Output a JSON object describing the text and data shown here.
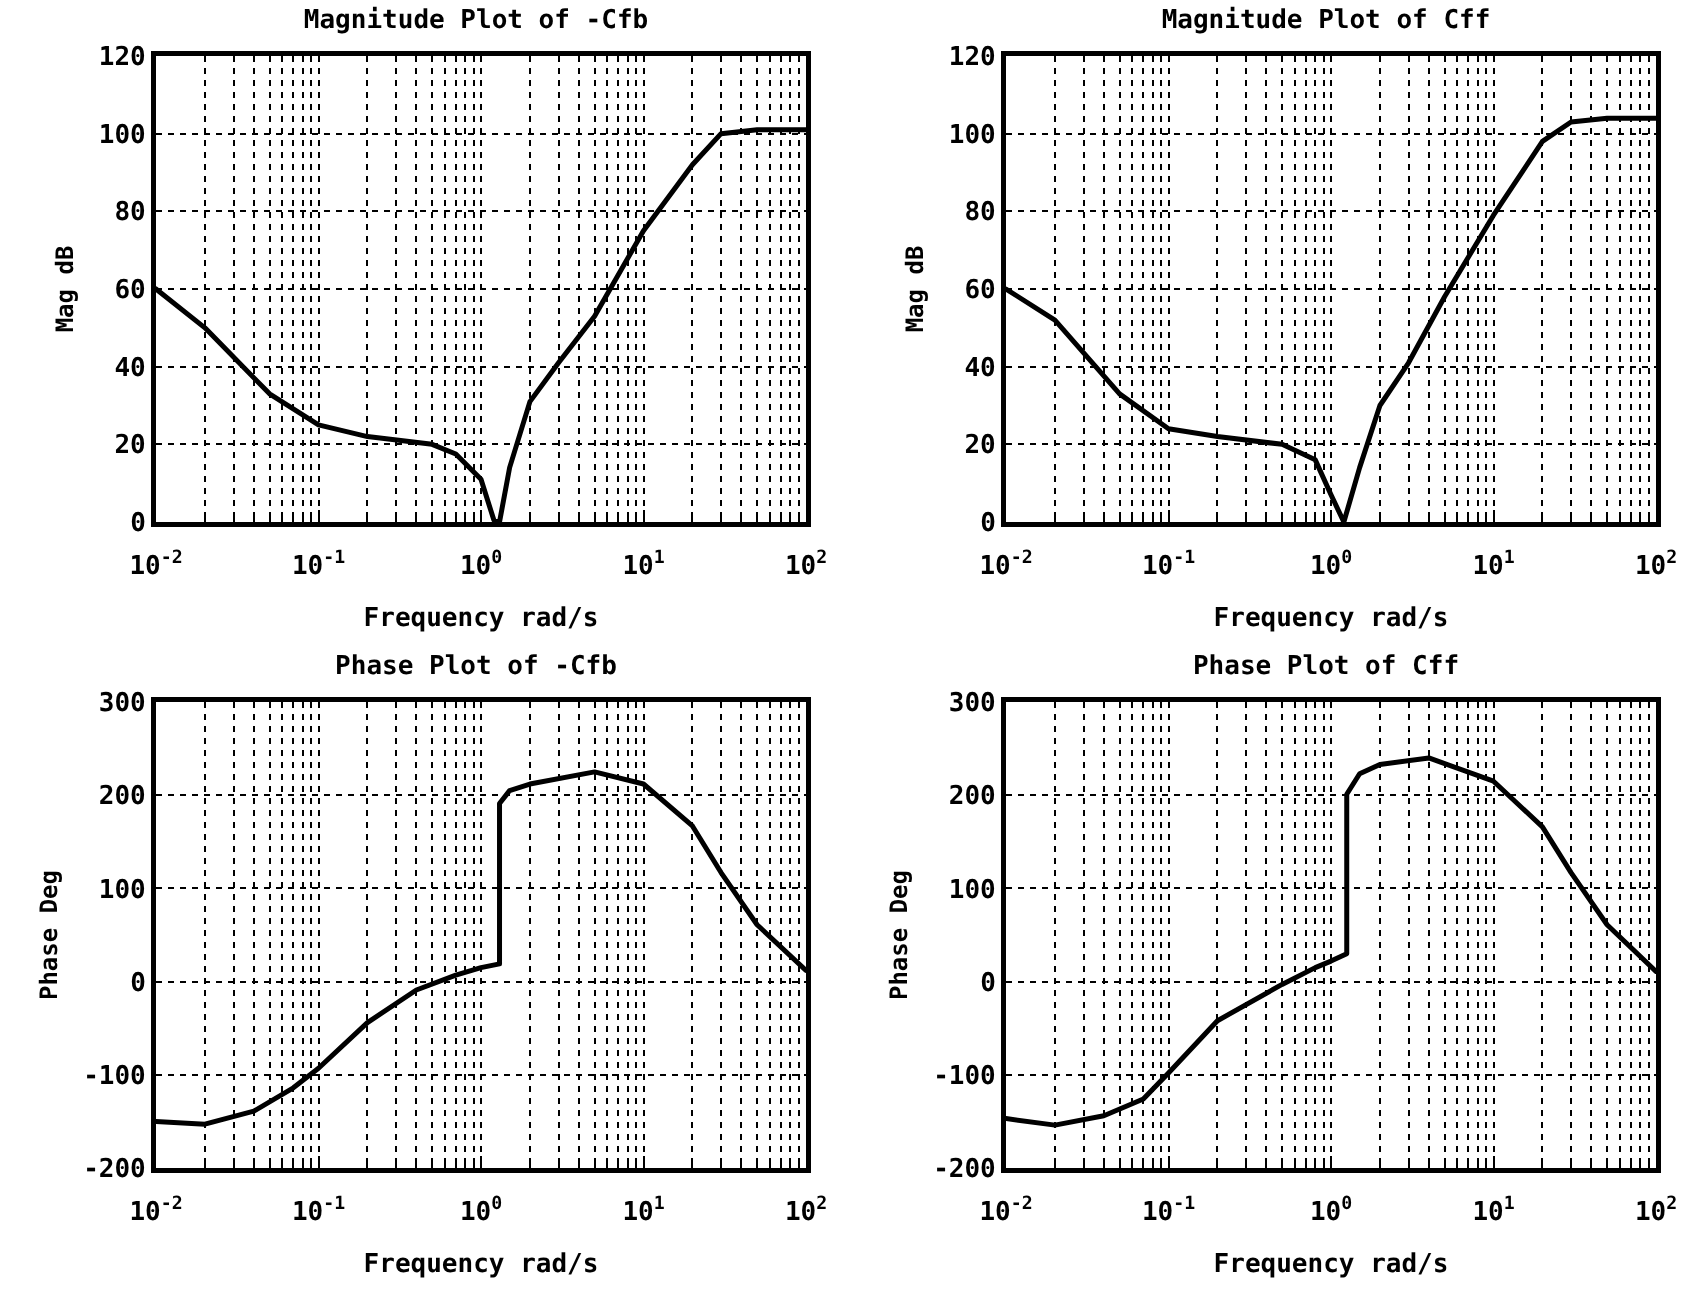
{
  "chart_data": [
    {
      "type": "line",
      "title": "Magnitude Plot of -Cfb",
      "xlabel": "Frequency rad/s",
      "ylabel": "Mag dB",
      "log": "x",
      "grid": true,
      "xlim": [
        0.01,
        100
      ],
      "xticks": [
        {
          "value": 0.01,
          "label": "10$^{-2}$"
        },
        {
          "value": 0.1,
          "label": "10$^{-1}$"
        },
        {
          "value": 1,
          "label": "10$^{0}$"
        },
        {
          "value": 10,
          "label": "10$^{1}$"
        },
        {
          "value": 100,
          "label": "10$^{2}$"
        }
      ],
      "ylim": [
        0,
        120
      ],
      "yticks": [
        0,
        20,
        40,
        60,
        80,
        100,
        120
      ],
      "series": [
        {
          "color": "#000000",
          "x": [
            0.01,
            0.02,
            0.05,
            0.1,
            0.2,
            0.5,
            0.7,
            1,
            1.2,
            1.3,
            1.5,
            2,
            3,
            5,
            10,
            20,
            30,
            50,
            100
          ],
          "values": [
            60,
            50,
            33,
            25,
            22,
            20,
            17.5,
            11,
            0.5,
            0,
            14,
            31,
            41,
            53,
            75,
            92,
            100,
            101,
            101
          ]
        }
      ]
    },
    {
      "type": "line",
      "title": "Magnitude Plot of Cff",
      "xlabel": "Frequency rad/s",
      "ylabel": "Mag dB",
      "log": "x",
      "grid": true,
      "xlim": [
        0.01,
        100
      ],
      "xticks": [
        {
          "value": 0.01,
          "label": "10$^{-2}$"
        },
        {
          "value": 0.1,
          "label": "10$^{-1}$"
        },
        {
          "value": 1,
          "label": "10$^{0}$"
        },
        {
          "value": 10,
          "label": "10$^{1}$"
        },
        {
          "value": 100,
          "label": "10$^{2}$"
        }
      ],
      "ylim": [
        0,
        120
      ],
      "yticks": [
        0,
        20,
        40,
        60,
        80,
        100,
        120
      ],
      "series": [
        {
          "color": "#000000",
          "x": [
            0.01,
            0.02,
            0.05,
            0.1,
            0.2,
            0.5,
            0.8,
            1,
            1.2,
            1.5,
            2,
            3,
            5,
            10,
            20,
            30,
            50,
            100
          ],
          "values": [
            60,
            52,
            33,
            24,
            22,
            20,
            16,
            7,
            0,
            14,
            30,
            41,
            58,
            79,
            98,
            103,
            104,
            104
          ]
        }
      ]
    },
    {
      "type": "line",
      "title": "Phase Plot of -Cfb",
      "xlabel": "Frequency rad/s",
      "ylabel": "Phase Deg",
      "log": "x",
      "grid": true,
      "xlim": [
        0.01,
        100
      ],
      "xticks": [
        {
          "value": 0.01,
          "label": "10$^{-2}$"
        },
        {
          "value": 0.1,
          "label": "10$^{-1}$"
        },
        {
          "value": 1,
          "label": "10$^{0}$"
        },
        {
          "value": 10,
          "label": "10$^{1}$"
        },
        {
          "value": 100,
          "label": "10$^{2}$"
        }
      ],
      "ylim": [
        -200,
        300
      ],
      "yticks": [
        -200,
        -100,
        0,
        100,
        200,
        300
      ],
      "series": [
        {
          "color": "#000000",
          "x": [
            0.01,
            0.02,
            0.04,
            0.07,
            0.1,
            0.2,
            0.4,
            0.7,
            1,
            1.3,
            1.3,
            1.5,
            2,
            5,
            10,
            20,
            30,
            50,
            100
          ],
          "values": [
            -150,
            -153,
            -139,
            -114,
            -93,
            -44,
            -9,
            7,
            15,
            19,
            191,
            205,
            212,
            225,
            212,
            167,
            117,
            61,
            12
          ]
        }
      ]
    },
    {
      "type": "line",
      "title": "Phase Plot of Cff",
      "xlabel": "Frequency rad/s",
      "ylabel": "Phase Deg",
      "log": "x",
      "grid": true,
      "xlim": [
        0.01,
        100
      ],
      "xticks": [
        {
          "value": 0.01,
          "label": "10$^{-2}$"
        },
        {
          "value": 0.1,
          "label": "10$^{-1}$"
        },
        {
          "value": 1,
          "label": "10$^{0}$"
        },
        {
          "value": 10,
          "label": "10$^{1}$"
        },
        {
          "value": 100,
          "label": "10$^{2}$"
        }
      ],
      "ylim": [
        -200,
        300
      ],
      "yticks": [
        -200,
        -100,
        0,
        100,
        200,
        300
      ],
      "series": [
        {
          "color": "#000000",
          "x": [
            0.01,
            0.02,
            0.04,
            0.07,
            0.1,
            0.2,
            0.5,
            0.8,
            1,
            1.25,
            1.25,
            1.5,
            2,
            4,
            10,
            20,
            30,
            50,
            100
          ],
          "values": [
            -147,
            -154,
            -144,
            -126,
            -98,
            -42,
            -3,
            15,
            22,
            30,
            201,
            223,
            233,
            240,
            215,
            166,
            117,
            61,
            11
          ]
        }
      ]
    }
  ]
}
